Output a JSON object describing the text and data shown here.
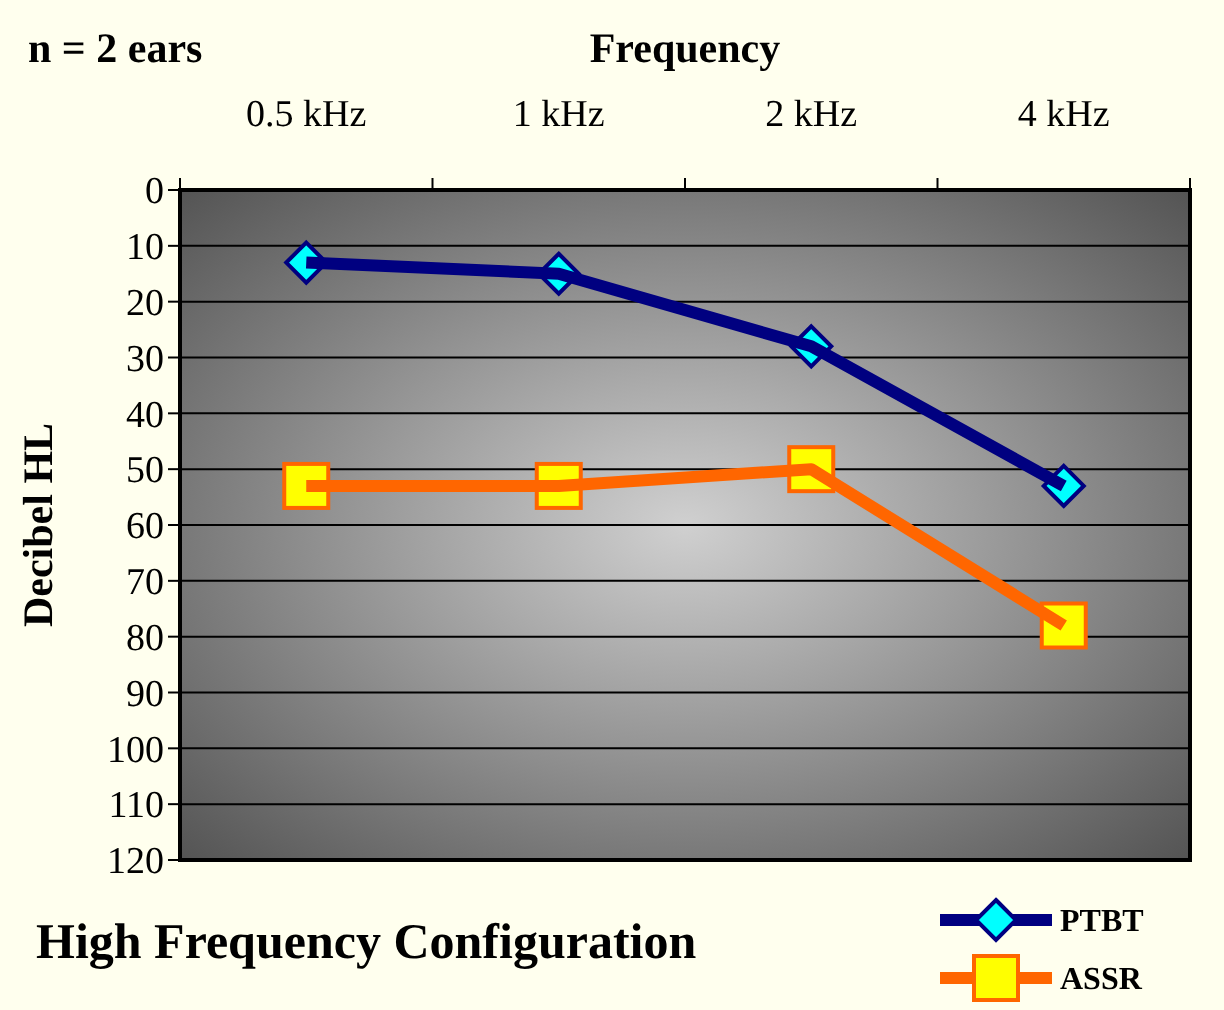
{
  "chart_data": {
    "type": "line",
    "title": "High Frequency Configuration",
    "xlabel": "Frequency",
    "ylabel": "Decibel HL",
    "annotations": [
      "n = 2 ears"
    ],
    "categories": [
      "0.5 kHz",
      "1 kHz",
      "2 kHz",
      "4 kHz"
    ],
    "series": [
      {
        "name": "PTBT",
        "color": "#000080",
        "marker": "diamond",
        "values": [
          13,
          15,
          28,
          53
        ]
      },
      {
        "name": "ASSR",
        "color": "#ff6600",
        "marker": "square",
        "values": [
          53,
          53,
          50,
          78
        ]
      }
    ],
    "ylim": [
      120,
      0
    ],
    "yticks": [
      0,
      10,
      20,
      30,
      40,
      50,
      60,
      70,
      80,
      90,
      100,
      110,
      120
    ],
    "grid": "y",
    "legend": "bottom right",
    "line_style": "solid"
  }
}
